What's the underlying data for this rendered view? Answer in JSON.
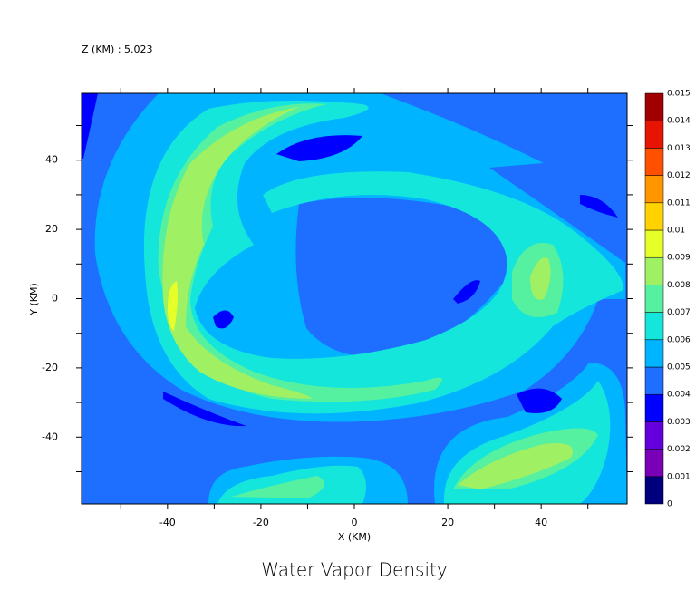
{
  "chart_data": {
    "type": "contour",
    "title": "Water Vapor Density",
    "subtitle": "Z (KM) : 5.023",
    "x_label": "X (KM)",
    "y_label": "Y (KM)",
    "xlim": [
      -58.4,
      58.4
    ],
    "ylim": [
      -59.3,
      59.3
    ],
    "xticks": [
      -40,
      -20,
      0,
      20,
      40
    ],
    "yticks": [
      -40,
      -20,
      0,
      20,
      40
    ],
    "xminorticks": [
      -50,
      -30,
      -10,
      10,
      30,
      50
    ],
    "yminorticks": [
      -50,
      -30,
      -10,
      10,
      30,
      50
    ],
    "levels": [
      0,
      0.001,
      0.002,
      0.003,
      0.004,
      0.005,
      0.006,
      0.007,
      0.008,
      0.009,
      0.01,
      0.011,
      0.012,
      0.013,
      0.014,
      0.015
    ],
    "colors": [
      "#00007f",
      "#7a00b8",
      "#6400dc",
      "#0000ff",
      "#1e6eff",
      "#00b4ff",
      "#14e6dc",
      "#55f0a0",
      "#a0f064",
      "#e6ff28",
      "#ffd200",
      "#ff9600",
      "#ff5000",
      "#e61400",
      "#a00000"
    ]
  }
}
